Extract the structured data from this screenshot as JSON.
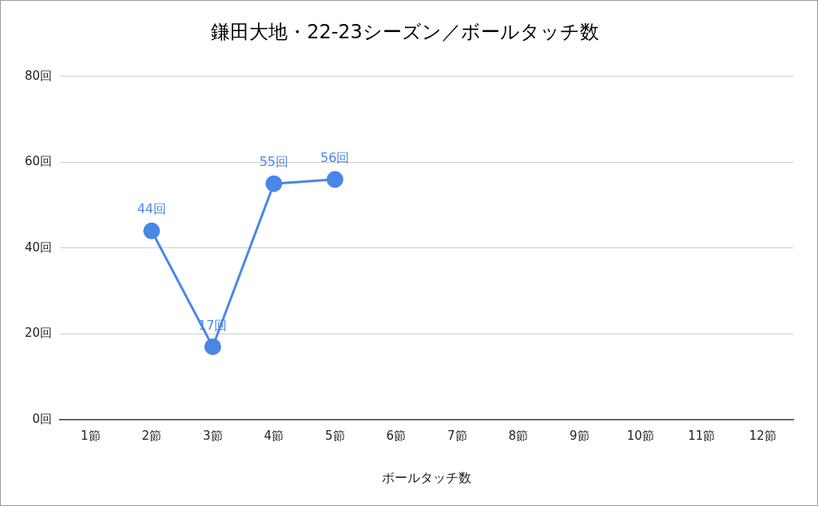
{
  "chart_data": {
    "type": "line",
    "title": "鎌田大地・22-23シーズン／ボールタッチ数",
    "x_label": "ボールタッチ数",
    "categories": [
      "1節",
      "2節",
      "3節",
      "4節",
      "5節",
      "6節",
      "7節",
      "8節",
      "9節",
      "10節",
      "11節",
      "12節"
    ],
    "values": [
      null,
      44,
      17,
      55,
      56,
      null,
      null,
      null,
      null,
      null,
      null,
      null
    ],
    "value_labels": [
      null,
      "44回",
      "17回",
      "55回",
      "56回",
      null,
      null,
      null,
      null,
      null,
      null,
      null
    ],
    "color": "#4a86e8",
    "ylim": [
      0,
      80
    ],
    "yticks": [
      {
        "value": 0,
        "label": "0回"
      },
      {
        "value": 20,
        "label": "20回"
      },
      {
        "value": 40,
        "label": "40回"
      },
      {
        "value": 60,
        "label": "60回"
      },
      {
        "value": 80,
        "label": "80回"
      }
    ],
    "grid": true,
    "data_labels": true,
    "marker": "circle",
    "line_style": "solid"
  }
}
